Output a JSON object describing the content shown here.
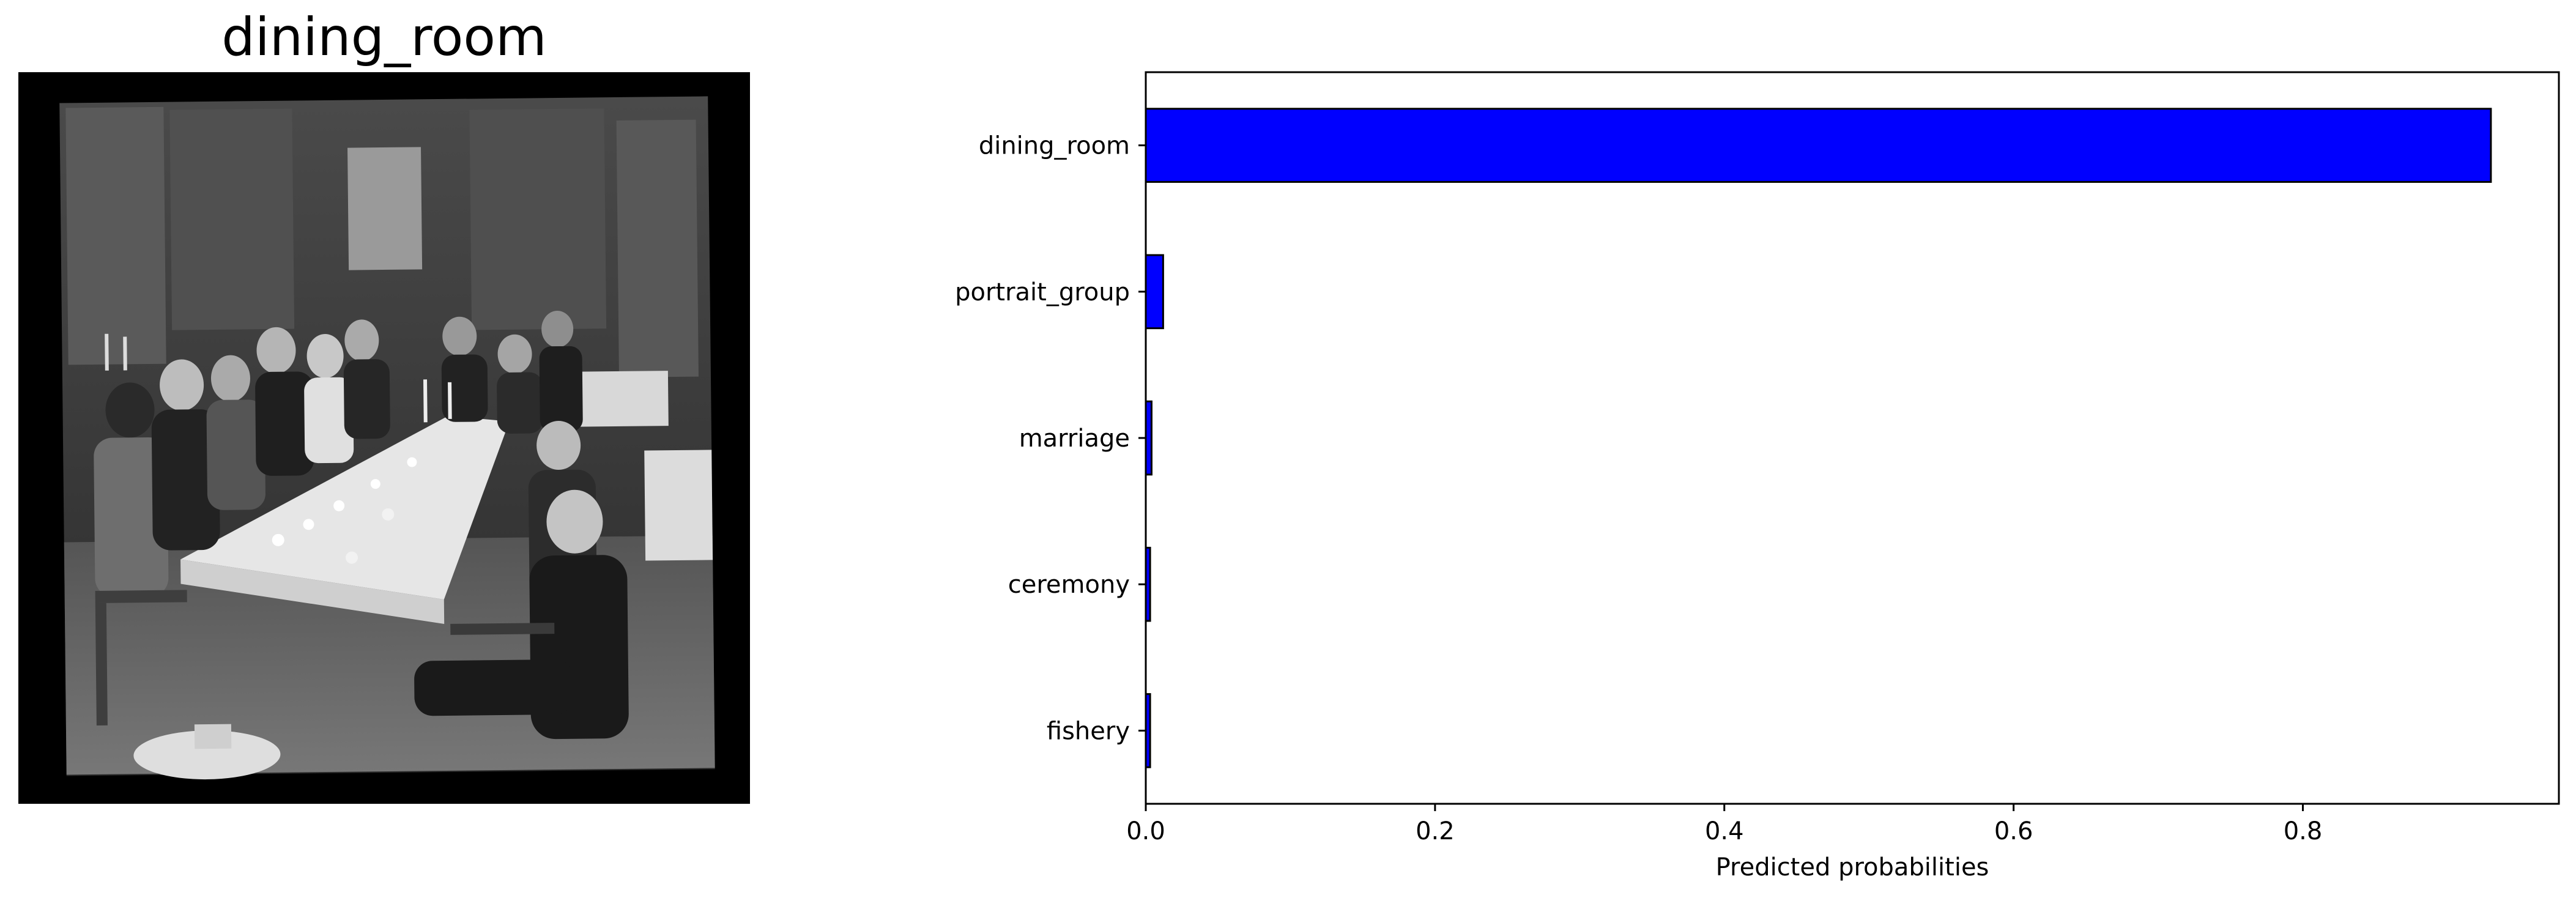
{
  "image_panel": {
    "title": "dining_room"
  },
  "chart_data": {
    "type": "bar",
    "orientation": "horizontal",
    "categories": [
      "dining_room",
      "portrait_group",
      "marriage",
      "ceremony",
      "fishery"
    ],
    "values": [
      0.93,
      0.012,
      0.004,
      0.003,
      0.003
    ],
    "xlabel": "Predicted probabilities",
    "ylabel": "",
    "xlim": [
      0,
      0.977
    ],
    "x_ticks": [
      0.0,
      0.2,
      0.4,
      0.6,
      0.8
    ],
    "x_tick_labels": [
      "0.0",
      "0.2",
      "0.4",
      "0.6",
      "0.8"
    ],
    "grid": false,
    "bar_color": "#0000ff",
    "bar_edge_color": "#000000"
  }
}
